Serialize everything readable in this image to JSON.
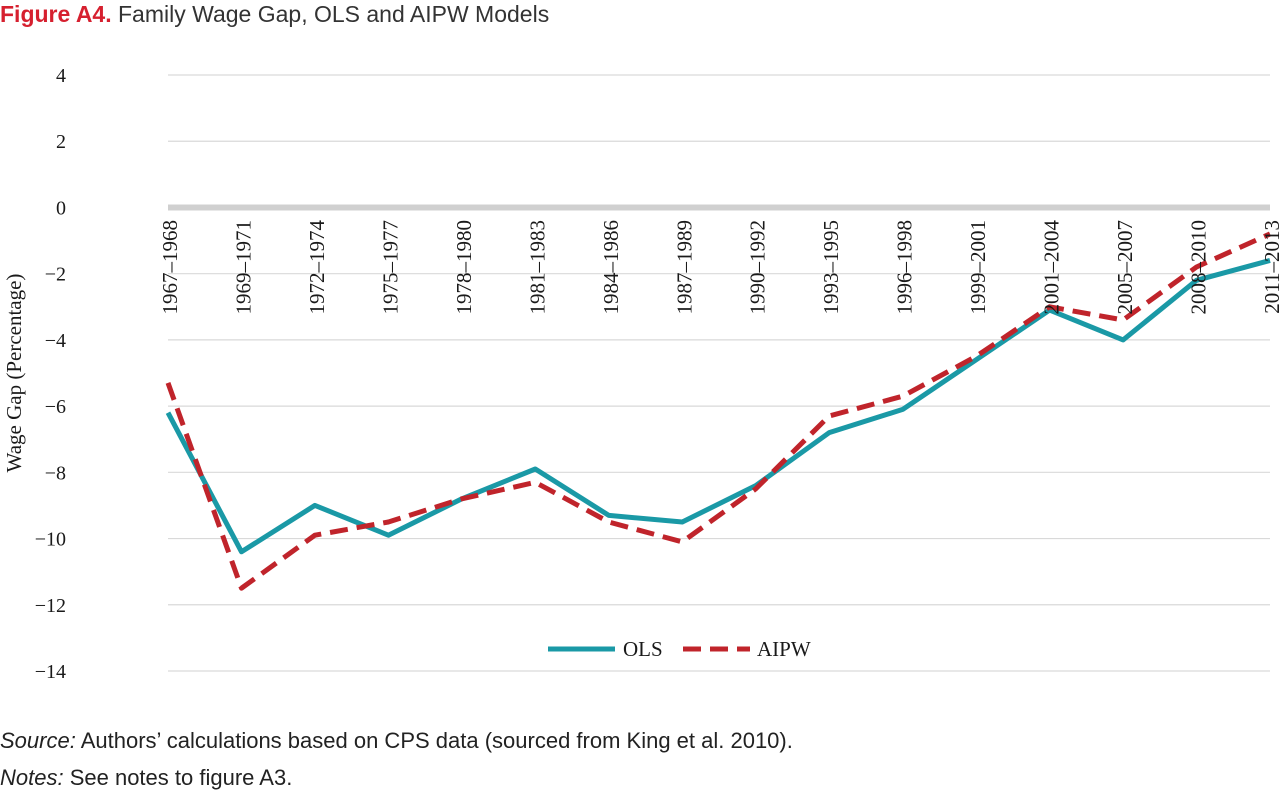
{
  "figure": {
    "label": "Figure A4.",
    "title": "Family Wage Gap, OLS and AIPW Models"
  },
  "chart_data": {
    "type": "line",
    "xlabel": "",
    "ylabel": "Wage  Gap (Percentage)",
    "ylim": [
      -14,
      4
    ],
    "yticks": [
      4,
      2,
      0,
      -2,
      -4,
      -6,
      -8,
      -10,
      -12,
      -14
    ],
    "ytick_labels": [
      "4",
      "2",
      "0",
      "−2",
      "−4",
      "−6",
      "−8",
      "−10",
      "−12",
      "−14"
    ],
    "grid": true,
    "legend_position": "bottom-center",
    "categories": [
      "1967–1968",
      "1969–1971",
      "1972–1974",
      "1975–1977",
      "1978–1980",
      "1981–1983",
      "1984–1986",
      "1987–1989",
      "1990–1992",
      "1993–1995",
      "1996–1998",
      "1999–2001",
      "2001–2004",
      "2005–2007",
      "2008–2010",
      "2011–2013"
    ],
    "series": [
      {
        "name": "OLS",
        "color": "#1a99a6",
        "dash": "solid",
        "values": [
          -6.2,
          -10.4,
          -9.0,
          -9.9,
          -8.8,
          -7.9,
          -9.3,
          -9.5,
          -8.4,
          -6.8,
          -6.1,
          -4.6,
          -3.1,
          -4.0,
          -2.2,
          -1.6
        ]
      },
      {
        "name": "AIPW",
        "color": "#c0242b",
        "dash": "dashed",
        "values": [
          -5.3,
          -11.5,
          -9.9,
          -9.5,
          -8.8,
          -8.3,
          -9.5,
          -10.1,
          -8.5,
          -6.3,
          -5.7,
          -4.5,
          -3.0,
          -3.4,
          -1.8,
          -0.8
        ]
      }
    ]
  },
  "notes": {
    "source_label": "Source:",
    "source_text": " Authors’ calculations based on CPS data (sourced from King et al. 2010).",
    "notes_label": "Notes:",
    "notes_text": " See notes to figure A3."
  }
}
